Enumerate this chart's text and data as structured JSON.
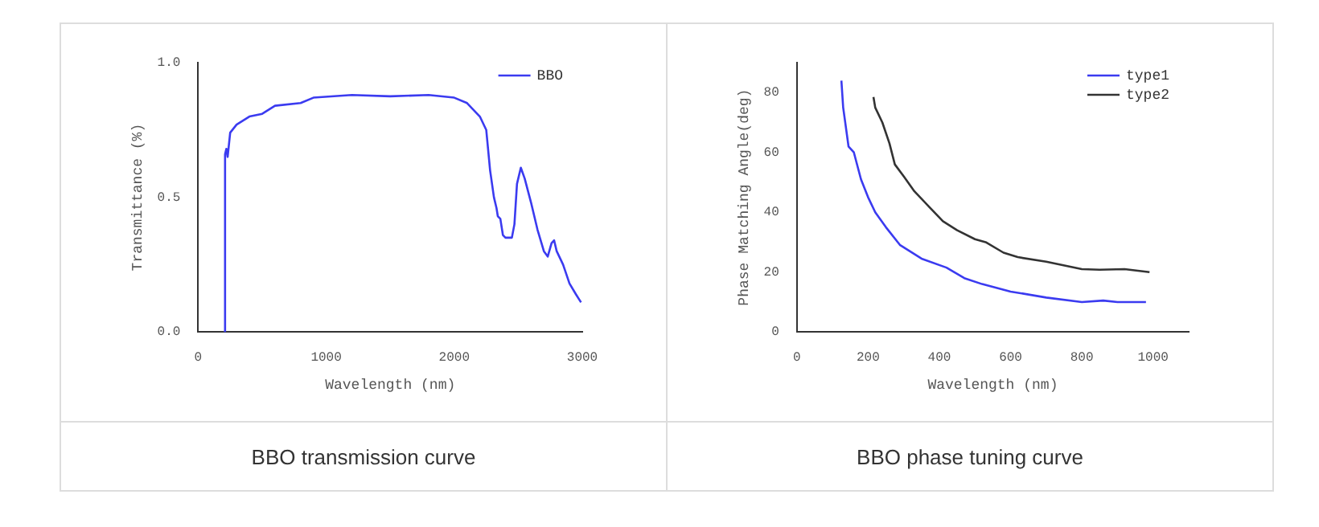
{
  "chart_data": [
    {
      "type": "line",
      "title": "BBO transmission curve",
      "xlabel": "Wavelength (nm)",
      "ylabel": "Transmittance (%)",
      "xlim": [
        0,
        3000
      ],
      "ylim": [
        0,
        1.0
      ],
      "xticks": [
        0,
        1000,
        2000,
        3000
      ],
      "yticks": [
        {
          "value": 0,
          "label": "0.0"
        },
        {
          "value": 0.5,
          "label": "0.5"
        },
        {
          "value": 1,
          "label": "1.0"
        }
      ],
      "grid": false,
      "legend": "top right",
      "marker": "none",
      "line_style": "solid",
      "series": [
        {
          "name": "BBO",
          "color": "#3b3bf0",
          "x": [
            200,
            210,
            220,
            230,
            250,
            300,
            400,
            500,
            600,
            800,
            900,
            1200,
            1500,
            1800,
            2000,
            2100,
            2200,
            2250,
            2280,
            2310,
            2330,
            2340,
            2360,
            2380,
            2400,
            2450,
            2470,
            2490,
            2520,
            2550,
            2600,
            2650,
            2700,
            2730,
            2760,
            2780,
            2800,
            2850,
            2900,
            2950,
            2990
          ],
          "values": [
            0,
            0.66,
            0.68,
            0.65,
            0.74,
            0.77,
            0.8,
            0.81,
            0.84,
            0.85,
            0.87,
            0.88,
            0.875,
            0.88,
            0.87,
            0.85,
            0.8,
            0.75,
            0.6,
            0.5,
            0.46,
            0.43,
            0.42,
            0.36,
            0.35,
            0.35,
            0.4,
            0.55,
            0.61,
            0.57,
            0.48,
            0.38,
            0.3,
            0.28,
            0.33,
            0.34,
            0.3,
            0.25,
            0.18,
            0.14,
            0.11
          ]
        }
      ]
    },
    {
      "type": "line",
      "title": "BBO phase tuning curve",
      "xlabel": "Wavelength (nm)",
      "ylabel": "Phase Matching Angle(deg)",
      "xlim": [
        0,
        1100
      ],
      "ylim": [
        0,
        90
      ],
      "xticks": [
        0,
        200,
        400,
        600,
        800,
        1000
      ],
      "yticks": [
        0,
        20,
        40,
        60,
        80
      ],
      "grid": false,
      "legend": "top right",
      "marker": "none",
      "line_style": "solid",
      "series": [
        {
          "name": "type1",
          "color": "#3b3bf0",
          "x": [
            125,
            130,
            145,
            160,
            180,
            200,
            220,
            250,
            290,
            350,
            420,
            470,
            520,
            600,
            700,
            800,
            860,
            900,
            980
          ],
          "values": [
            84,
            75,
            62,
            60,
            51,
            45,
            40,
            35,
            29,
            24.5,
            21.5,
            18,
            16,
            13.5,
            11.5,
            10,
            10.5,
            10,
            10
          ]
        },
        {
          "name": "type2",
          "color": "#333333",
          "x": [
            215,
            220,
            240,
            260,
            275,
            300,
            330,
            370,
            410,
            450,
            500,
            530,
            580,
            620,
            700,
            800,
            850,
            920,
            990
          ],
          "values": [
            78.5,
            75,
            70,
            63,
            56,
            52,
            47,
            42,
            37,
            34,
            31,
            30,
            26.5,
            25,
            23.5,
            21,
            20.8,
            21,
            20
          ]
        }
      ]
    }
  ]
}
